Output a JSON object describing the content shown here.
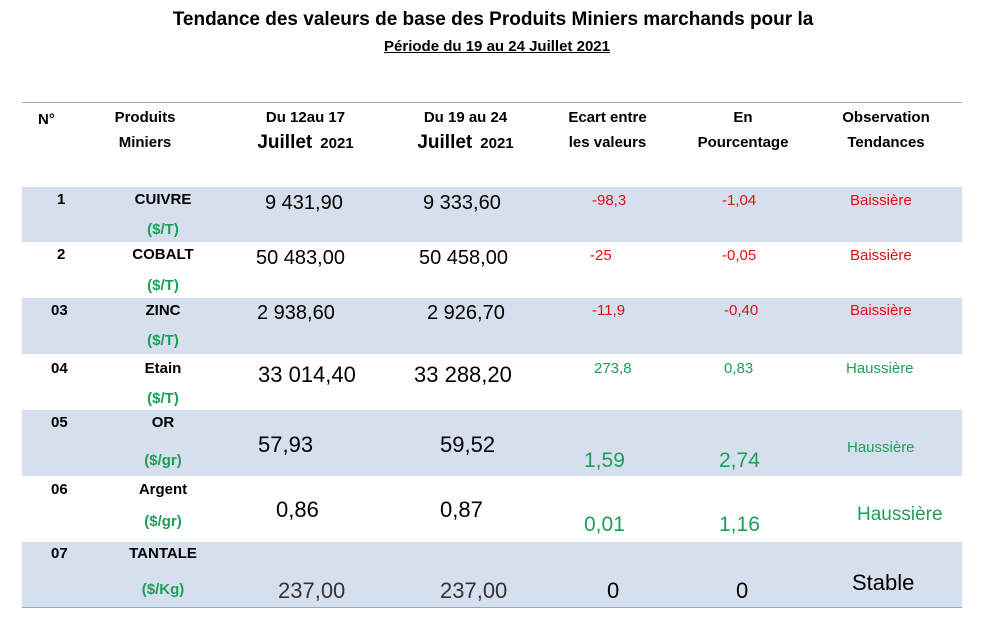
{
  "title": "Tendance des valeurs de base des Produits Miniers marchands pour la",
  "subtitle": "Période du 19 au 24 Juillet    2021",
  "headers": {
    "num": "N°",
    "product_l1": "Produits",
    "product_l2": "Miniers",
    "period1_l1": "Du 12au 17",
    "period1_l2a": "Juillet",
    "period1_l2b": "2021",
    "period2_l1": "Du 19 au 24",
    "period2_l2a": "Juillet",
    "period2_l2b": "2021",
    "gap_l1": "Ecart entre",
    "gap_l2": "les valeurs",
    "pct_l1": "En",
    "pct_l2": "Pourcentage",
    "obs_l1": "Observation",
    "obs_l2": "Tendances"
  },
  "rows": [
    {
      "num": "1",
      "name": "CUIVRE",
      "unit": "($/T)",
      "v1": "9 431,90",
      "v2": "9 333,60",
      "gap": "-98,3",
      "pct": "-1,04",
      "trend": "Baissière"
    },
    {
      "num": "2",
      "name": "COBALT",
      "unit": "($/T)",
      "v1": "50 483,00",
      "v2": "50 458,00",
      "gap": "-25",
      "pct": "-0,05",
      "trend": "Baissière"
    },
    {
      "num": "03",
      "name": "ZINC",
      "unit": "($/T)",
      "v1": "2 938,60",
      "v2": "2 926,70",
      "gap": "-11,9",
      "pct": "-0,40",
      "trend": "Baissière"
    },
    {
      "num": "04",
      "name": "Etain",
      "unit": "($/T)",
      "v1": "33 014,40",
      "v2": "33 288,20",
      "gap": "273,8",
      "pct": "0,83",
      "trend": "Haussière"
    },
    {
      "num": "05",
      "name": "OR",
      "unit": "($/gr)",
      "v1": "57,93",
      "v2": "59,52",
      "gap": "1,59",
      "pct": "2,74",
      "trend": "Haussière"
    },
    {
      "num": "06",
      "name": "Argent",
      "unit": "($/gr)",
      "v1": "0,86",
      "v2": "0,87",
      "gap": "0,01",
      "pct": "1,16",
      "trend": "Haussière"
    },
    {
      "num": "07",
      "name": "TANTALE",
      "unit": "($/Kg)",
      "v1": "237,00",
      "v2": "237,00",
      "gap": "0",
      "pct": "0",
      "trend": "Stable"
    }
  ],
  "colors": {
    "shade": "#d6dfed",
    "negative": "#e01010",
    "positive": "#1e9e57",
    "rule": "#8ea9c8"
  }
}
